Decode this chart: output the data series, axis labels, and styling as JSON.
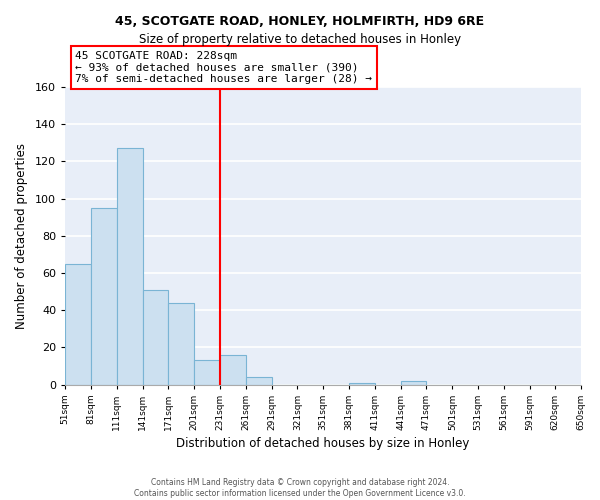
{
  "title": "45, SCOTGATE ROAD, HONLEY, HOLMFIRTH, HD9 6RE",
  "subtitle": "Size of property relative to detached houses in Honley",
  "xlabel": "Distribution of detached houses by size in Honley",
  "ylabel": "Number of detached properties",
  "bar_edges": [
    51,
    81,
    111,
    141,
    171,
    201,
    231,
    261,
    291,
    321,
    351,
    381,
    411,
    441,
    471,
    501,
    531,
    561,
    591,
    620,
    650
  ],
  "bar_heights": [
    65,
    95,
    127,
    51,
    44,
    13,
    16,
    4,
    0,
    0,
    0,
    1,
    0,
    2,
    0,
    0,
    0,
    0,
    0,
    0
  ],
  "bar_color": "#cce0f0",
  "bar_edge_color": "#7ab4d4",
  "reference_x": 231,
  "reference_line_color": "red",
  "annotation_title": "45 SCOTGATE ROAD: 228sqm",
  "annotation_line1": "← 93% of detached houses are smaller (390)",
  "annotation_line2": "7% of semi-detached houses are larger (28) →",
  "ylim": [
    0,
    160
  ],
  "xlim": [
    51,
    650
  ],
  "tick_labels": [
    "51sqm",
    "81sqm",
    "111sqm",
    "141sqm",
    "171sqm",
    "201sqm",
    "231sqm",
    "261sqm",
    "291sqm",
    "321sqm",
    "351sqm",
    "381sqm",
    "411sqm",
    "441sqm",
    "471sqm",
    "501sqm",
    "531sqm",
    "561sqm",
    "591sqm",
    "620sqm",
    "650sqm"
  ],
  "footer1": "Contains HM Land Registry data © Crown copyright and database right 2024.",
  "footer2": "Contains public sector information licensed under the Open Government Licence v3.0.",
  "bg_color": "#ffffff",
  "plot_bg_color": "#e8eef8"
}
